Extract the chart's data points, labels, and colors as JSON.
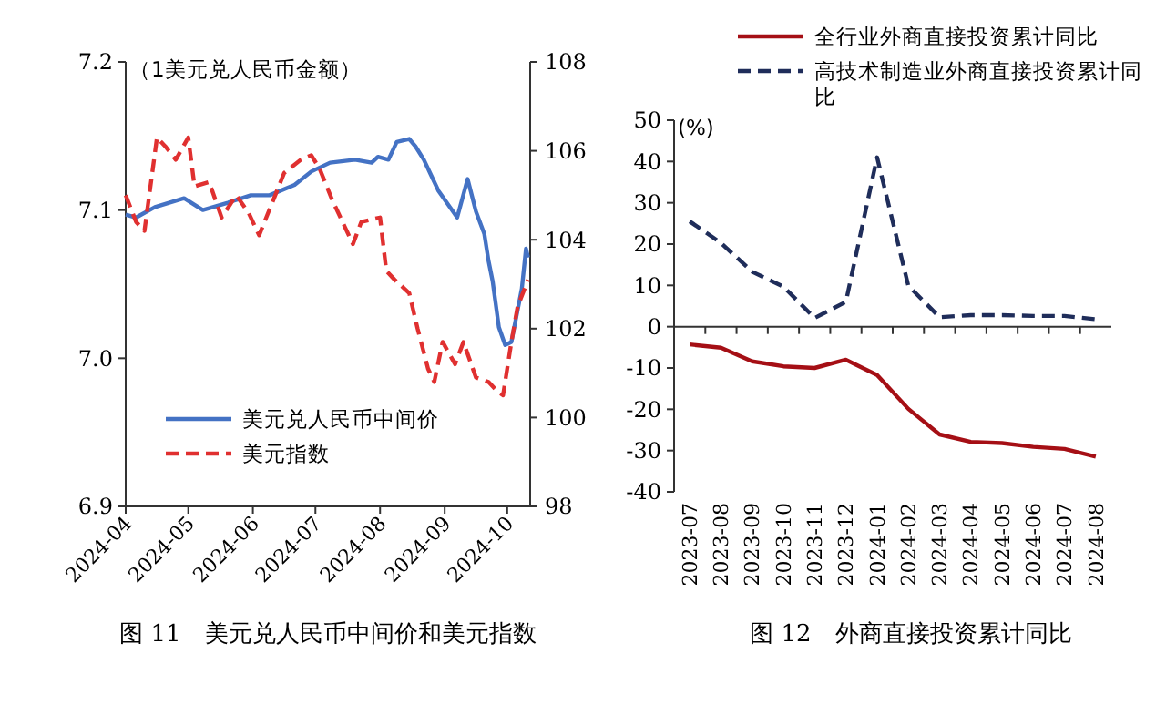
{
  "chart_data": [
    {
      "type": "line",
      "title": "图 11　美元兑人民币中间价和美元指数",
      "ylabel": "（1美元兑人民币金额）",
      "xlim": [
        "2024-04-01",
        "2024-10-12"
      ],
      "xticks": [
        "2024-04",
        "2024-05",
        "2024-06",
        "2024-07",
        "2024-08",
        "2024-09",
        "2024-10"
      ],
      "ylim": [
        6.9,
        7.2
      ],
      "yticks": [
        6.9,
        {
          "value": 7,
          "label": "7.0"
        },
        7.1,
        7.2
      ],
      "y2lim": [
        98,
        108
      ],
      "y2ticks": [
        98,
        100,
        102,
        104,
        106,
        108
      ],
      "legend": "bottom left",
      "grid": false,
      "marker": "none",
      "series": [
        {
          "name": "美元兑人民币中间价",
          "color": "#4472c4",
          "line_style": "solid",
          "x": [
            "2024-04-01",
            "2024-04-06",
            "2024-04-15",
            "2024-04-29",
            "2024-05-08",
            "2024-05-20",
            "2024-05-31",
            "2024-06-09",
            "2024-06-21",
            "2024-06-29",
            "2024-07-08",
            "2024-07-20",
            "2024-07-28",
            "2024-07-31",
            "2024-08-05",
            "2024-08-09",
            "2024-08-15",
            "2024-08-18",
            "2024-08-22",
            "2024-08-25",
            "2024-08-29",
            "2024-09-02",
            "2024-09-07",
            "2024-09-12",
            "2024-09-16",
            "2024-09-20",
            "2024-09-22",
            "2024-09-24",
            "2024-09-27",
            "2024-09-30",
            "2024-10-03",
            "2024-10-08",
            "2024-10-10",
            "2024-10-11"
          ],
          "values": [
            7.097,
            7.095,
            7.102,
            7.108,
            7.1,
            7.105,
            7.11,
            7.11,
            7.117,
            7.126,
            7.132,
            7.134,
            7.132,
            7.136,
            7.134,
            7.146,
            7.148,
            7.143,
            7.134,
            7.125,
            7.113,
            7.105,
            7.095,
            7.121,
            7.099,
            7.084,
            7.066,
            7.052,
            7.021,
            7.009,
            7.011,
            7.047,
            7.074,
            7.068
          ]
        },
        {
          "name": "美元指数",
          "color": "#e03030",
          "line_style": "dashed",
          "axis": "y2",
          "x": [
            "2024-04-01",
            "2024-04-06",
            "2024-04-10",
            "2024-04-16",
            "2024-04-20",
            "2024-04-25",
            "2024-05-01",
            "2024-05-04",
            "2024-05-11",
            "2024-05-17",
            "2024-05-24",
            "2024-05-30",
            "2024-06-04",
            "2024-06-10",
            "2024-06-16",
            "2024-06-24",
            "2024-06-29",
            "2024-07-03",
            "2024-07-09",
            "2024-07-15",
            "2024-07-19",
            "2024-07-23",
            "2024-08-01",
            "2024-08-04",
            "2024-08-08",
            "2024-08-15",
            "2024-08-19",
            "2024-08-24",
            "2024-08-27",
            "2024-08-31",
            "2024-09-06",
            "2024-09-10",
            "2024-09-16",
            "2024-09-22",
            "2024-09-26",
            "2024-09-29",
            "2024-10-03",
            "2024-10-06",
            "2024-10-11"
          ],
          "values": [
            105.0,
            104.4,
            104.2,
            106.3,
            106.1,
            105.8,
            106.3,
            105.2,
            105.3,
            104.5,
            105.0,
            104.6,
            104.1,
            104.8,
            105.5,
            105.8,
            105.9,
            105.6,
            104.9,
            104.3,
            103.9,
            104.4,
            104.5,
            103.3,
            103.1,
            102.8,
            102.0,
            101.1,
            100.8,
            101.7,
            101.2,
            101.7,
            100.9,
            100.8,
            100.6,
            100.5,
            101.7,
            102.5,
            103.1
          ]
        }
      ]
    },
    {
      "type": "line",
      "title": "图 12　外商直接投资累计同比",
      "ylabel": "(%)",
      "categories": [
        "2023-07",
        "2023-08",
        "2023-09",
        "2023-10",
        "2023-11",
        "2023-12",
        "2024-01",
        "2024-02",
        "2024-03",
        "2024-04",
        "2024-05",
        "2024-06",
        "2024-07",
        "2024-08"
      ],
      "ylim": [
        -40,
        50
      ],
      "yticks": [
        -40,
        -30,
        -20,
        -10,
        0,
        10,
        20,
        30,
        40,
        50
      ],
      "legend": "top right",
      "marker": "none",
      "series": [
        {
          "name": "全行业外商直接投资累计同比",
          "color": "#a50f15",
          "line_style": "solid",
          "values": [
            -4.3,
            -5.1,
            -8.4,
            -9.6,
            -10.0,
            -8.0,
            -11.7,
            -19.9,
            -26.1,
            -27.9,
            -28.2,
            -29.1,
            -29.6,
            -31.5
          ]
        },
        {
          "name": "高技术制造业外商直接投资累计同比",
          "color": "#1f2d5a",
          "line_style": "dashed",
          "values": [
            25.5,
            20.3,
            13.3,
            9.7,
            2.1,
            6.0,
            41.0,
            9.9,
            2.3,
            2.8,
            2.8,
            2.6,
            2.6,
            1.8
          ]
        }
      ]
    }
  ]
}
